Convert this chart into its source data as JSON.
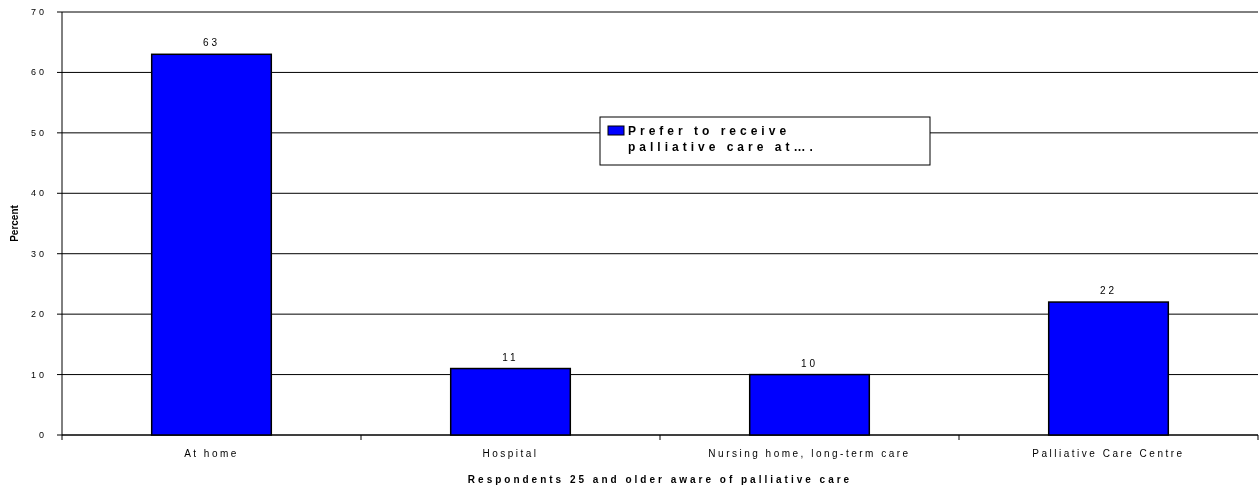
{
  "chart_data": {
    "type": "bar",
    "xlabel": "Respondents 25 and older aware of palliative care",
    "ylabel": "Percent",
    "categories": [
      "At home",
      "Hospital",
      "Nursing home, long-term care",
      "Palliative Care Centre"
    ],
    "series": [
      {
        "name": "Prefer to receive palliative care at….",
        "color": "#0000ff",
        "values": [
          63,
          11,
          10,
          22
        ]
      }
    ],
    "ylim": [
      0,
      70
    ],
    "yticks": [
      0,
      10,
      20,
      30,
      40,
      50,
      60,
      70
    ],
    "grid": "y",
    "legend": "top",
    "data_labels": true
  }
}
